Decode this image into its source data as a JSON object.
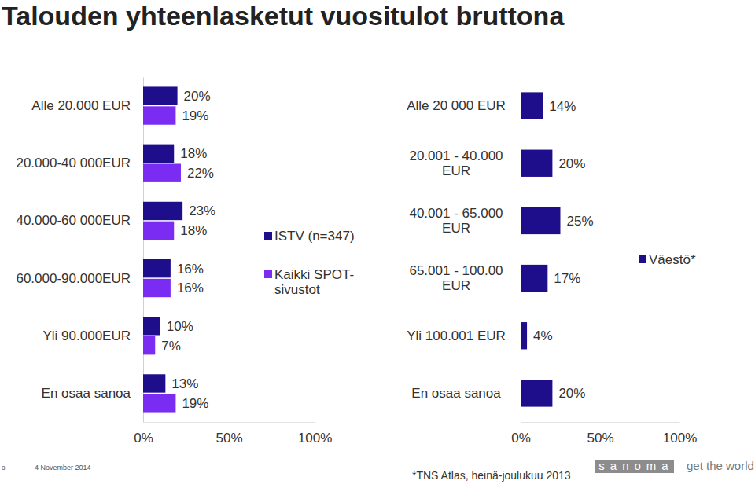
{
  "header": {
    "title": "Talouden yhteenlasketut vuositulot bruttona"
  },
  "chart_data": [
    {
      "type": "bar",
      "orientation": "horizontal",
      "data_labels": true,
      "legend": "right",
      "categories": [
        "Alle 20.000 EUR",
        "20.000-40 000EUR",
        "40.000-60 000EUR",
        "60.000-90.000EUR",
        "Yli 90.000EUR",
        "En osaa sanoa"
      ],
      "series": [
        {
          "name": "ISTV (n=347)",
          "color": "#1f0e8c",
          "values": [
            20,
            18,
            23,
            16,
            10,
            13
          ],
          "value_labels": [
            "20%",
            "18%",
            "23%",
            "16%",
            "10%",
            "13%"
          ]
        },
        {
          "name": "Kaikki SPOT-sivustot",
          "color": "#7b2cf2",
          "values": [
            19,
            22,
            18,
            16,
            7,
            19
          ],
          "value_labels": [
            "19%",
            "22%",
            "18%",
            "16%",
            "7%",
            "19%"
          ]
        }
      ],
      "xlim": [
        0,
        100
      ],
      "xticks": [
        {
          "value": 0,
          "label": "0%"
        },
        {
          "value": 50,
          "label": "50%"
        },
        {
          "value": 100,
          "label": "100%"
        }
      ]
    },
    {
      "type": "bar",
      "orientation": "horizontal",
      "data_labels": true,
      "legend": "right",
      "categories": [
        "Alle 20 000 EUR",
        "20.001 - 40.000 EUR",
        "40.001 - 65.000 EUR",
        "65.001 - 100.00 EUR",
        "Yli 100.001 EUR",
        "En osaa sanoa"
      ],
      "series": [
        {
          "name": "Väestö*",
          "color": "#1f0e8c",
          "values": [
            14,
            20,
            25,
            17,
            4,
            20
          ],
          "value_labels": [
            "14%",
            "20%",
            "25%",
            "17%",
            "4%",
            "20%"
          ]
        }
      ],
      "xlim": [
        0,
        100
      ],
      "xticks": [
        {
          "value": 0,
          "label": "0%"
        },
        {
          "value": 50,
          "label": "50%"
        },
        {
          "value": 100,
          "label": "100%"
        }
      ]
    }
  ],
  "footer": {
    "page": 8,
    "date": "4 November 2014",
    "source": "*TNS Atlas, heinä-joulukuu 2013",
    "logo": "sanoma",
    "tagline": "get the world"
  }
}
